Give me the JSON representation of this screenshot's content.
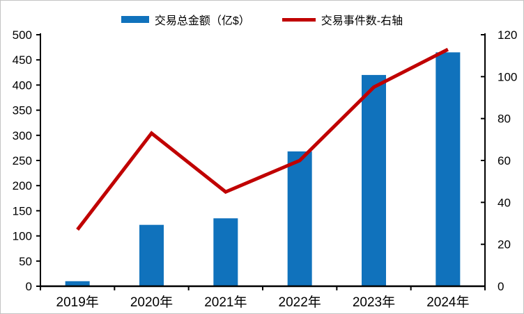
{
  "legend": {
    "bar_label": "交易总金额（亿$）",
    "line_label": "交易事件数-右轴"
  },
  "colors": {
    "bar": "#1072BC",
    "line": "#C00000",
    "axis": "#000000",
    "text": "#000000"
  },
  "chart_data": {
    "type": "bar",
    "subtype": "combo-bar-line",
    "title": "",
    "categories": [
      "2019年",
      "2020年",
      "2021年",
      "2022年",
      "2023年",
      "2024年"
    ],
    "series": [
      {
        "name": "交易总金额（亿$）",
        "kind": "bar",
        "axis": "left",
        "color": "#1072BC",
        "values": [
          10,
          122,
          135,
          268,
          420,
          465
        ]
      },
      {
        "name": "交易事件数-右轴",
        "kind": "line",
        "axis": "right",
        "color": "#C00000",
        "values": [
          27,
          73,
          45,
          60,
          95,
          113
        ]
      }
    ],
    "left_axis": {
      "min": 0,
      "max": 500,
      "step": 50,
      "ticks": [
        "0",
        "50",
        "100",
        "150",
        "200",
        "250",
        "300",
        "350",
        "400",
        "450",
        "500"
      ]
    },
    "right_axis": {
      "min": 0,
      "max": 120,
      "step": 20,
      "ticks": [
        "0",
        "20",
        "40",
        "60",
        "80",
        "100",
        "120"
      ]
    },
    "grid": false,
    "legend_position": "top"
  }
}
